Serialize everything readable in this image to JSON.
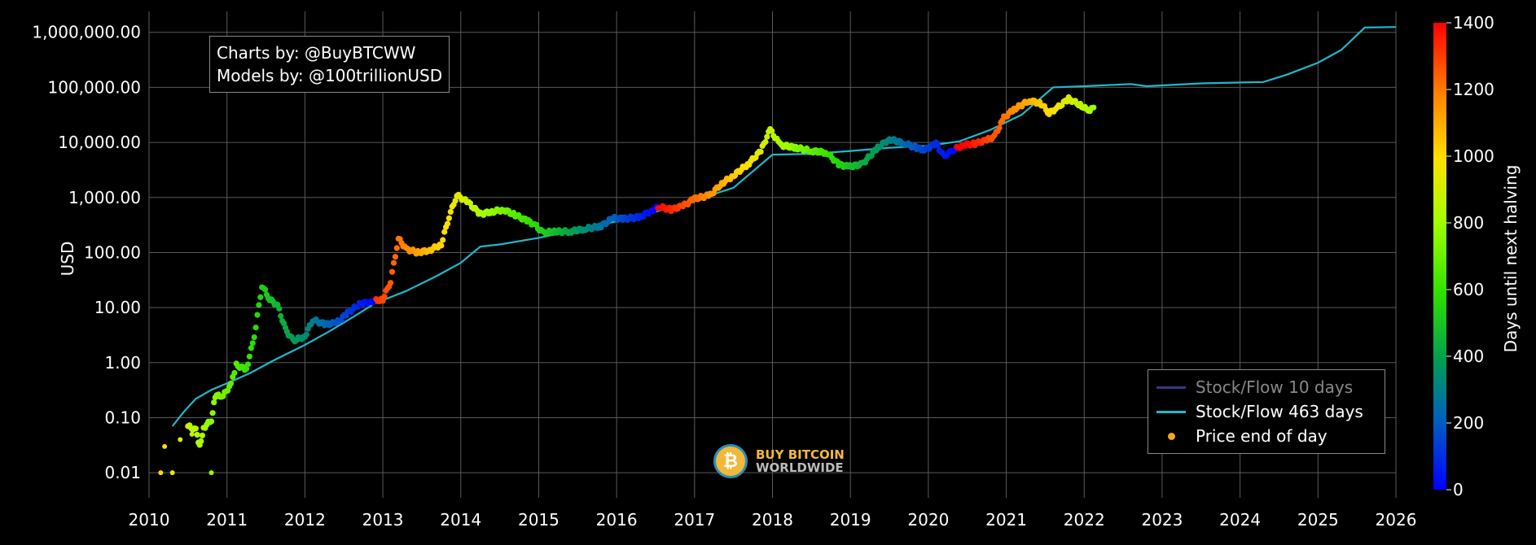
{
  "chart_data": {
    "type": "scatter",
    "title": "",
    "ylabel": "USD",
    "xlabel": "",
    "y_scale": "log",
    "y_ticks": [
      {
        "value": 0.01,
        "label": "0.01"
      },
      {
        "value": 0.1,
        "label": "0.10"
      },
      {
        "value": 1,
        "label": "1.00"
      },
      {
        "value": 10,
        "label": "10.00"
      },
      {
        "value": 100,
        "label": "100.00"
      },
      {
        "value": 1000,
        "label": "1,000.00"
      },
      {
        "value": 10000,
        "label": "10,000.00"
      },
      {
        "value": 100000,
        "label": "100,000.00"
      },
      {
        "value": 1000000,
        "label": "1,000,000.00"
      }
    ],
    "x_ticks": [
      "2010",
      "2011",
      "2012",
      "2013",
      "2014",
      "2015",
      "2016",
      "2017",
      "2018",
      "2019",
      "2020",
      "2021",
      "2022",
      "2023",
      "2024",
      "2025",
      "2026"
    ],
    "xlim": [
      2010,
      2026
    ],
    "ylim": [
      0.0035,
      2400000
    ],
    "grid": true,
    "colorbar": {
      "title": "Days until next halving",
      "range": [
        0,
        1400
      ],
      "ticks": [
        0,
        200,
        400,
        600,
        800,
        1000,
        1200,
        1400
      ]
    },
    "legend": {
      "placement": "bottom-right",
      "entries": [
        {
          "name": "Stock/Flow 10 days",
          "symbol": "line",
          "color": "#3a3580",
          "dimmed": true
        },
        {
          "name": "Stock/Flow 463 days",
          "symbol": "line",
          "color": "#1fb8cc"
        },
        {
          "name": "Price end of day",
          "symbol": "dot",
          "color": "#f5a623"
        }
      ]
    },
    "halvings": [
      2012.91,
      2016.52,
      2020.36,
      2024.3
    ],
    "series": [
      {
        "name": "Stock/Flow 463 days",
        "style": "line",
        "color": "#1fb8cc",
        "points": [
          [
            2010.3,
            0.07
          ],
          [
            2010.45,
            0.13
          ],
          [
            2010.6,
            0.22
          ],
          [
            2010.8,
            0.32
          ],
          [
            2011.0,
            0.42
          ],
          [
            2011.3,
            0.65
          ],
          [
            2011.6,
            1.1
          ],
          [
            2012.0,
            2.1
          ],
          [
            2012.3,
            3.6
          ],
          [
            2012.6,
            6.5
          ],
          [
            2012.9,
            12
          ],
          [
            2013.3,
            20
          ],
          [
            2013.7,
            38
          ],
          [
            2014.0,
            65
          ],
          [
            2014.25,
            128
          ],
          [
            2014.5,
            140
          ],
          [
            2015.0,
            185
          ],
          [
            2015.5,
            260
          ],
          [
            2016.0,
            370
          ],
          [
            2016.5,
            550
          ],
          [
            2016.9,
            800
          ],
          [
            2017.5,
            1500
          ],
          [
            2018.0,
            6000
          ],
          [
            2018.5,
            6200
          ],
          [
            2019.0,
            7000
          ],
          [
            2019.5,
            8000
          ],
          [
            2020.0,
            8700
          ],
          [
            2020.4,
            10500
          ],
          [
            2020.8,
            17000
          ],
          [
            2021.2,
            32000
          ],
          [
            2021.6,
            100000
          ],
          [
            2022.0,
            105000
          ],
          [
            2022.6,
            115000
          ],
          [
            2022.8,
            105000
          ],
          [
            2023.5,
            118000
          ],
          [
            2024.3,
            125000
          ],
          [
            2024.6,
            170000
          ],
          [
            2025.0,
            280000
          ],
          [
            2025.3,
            480000
          ],
          [
            2025.6,
            1220000
          ],
          [
            2026.0,
            1250000
          ]
        ]
      },
      {
        "name": "Price end of day",
        "style": "dots",
        "color_by": "Days until next halving",
        "points": [
          [
            2010.15,
            0.01
          ],
          [
            2010.3,
            0.01
          ],
          [
            2010.2,
            0.03
          ],
          [
            2010.4,
            0.04
          ],
          [
            2010.55,
            0.05
          ],
          [
            2010.8,
            0.01
          ],
          [
            2010.65,
            0.03
          ],
          [
            2010.5,
            0.07
          ],
          [
            2010.6,
            0.06
          ],
          [
            2010.7,
            0.065
          ],
          [
            2010.8,
            0.09
          ],
          [
            2010.85,
            0.25
          ],
          [
            2010.95,
            0.25
          ],
          [
            2011.05,
            0.4
          ],
          [
            2011.12,
            0.9
          ],
          [
            2011.25,
            0.75
          ],
          [
            2011.35,
            3
          ],
          [
            2011.45,
            25
          ],
          [
            2011.55,
            14
          ],
          [
            2011.65,
            11
          ],
          [
            2011.75,
            4
          ],
          [
            2011.85,
            2.5
          ],
          [
            2012.0,
            3
          ],
          [
            2012.1,
            6
          ],
          [
            2012.25,
            5
          ],
          [
            2012.4,
            5.2
          ],
          [
            2012.55,
            8
          ],
          [
            2012.7,
            11.5
          ],
          [
            2012.85,
            13
          ],
          [
            2013.0,
            14
          ],
          [
            2013.1,
            30
          ],
          [
            2013.2,
            180
          ],
          [
            2013.3,
            115
          ],
          [
            2013.45,
            100
          ],
          [
            2013.6,
            110
          ],
          [
            2013.75,
            140
          ],
          [
            2013.85,
            450
          ],
          [
            2013.95,
            1100
          ],
          [
            2014.1,
            800
          ],
          [
            2014.25,
            500
          ],
          [
            2014.4,
            550
          ],
          [
            2014.55,
            600
          ],
          [
            2014.7,
            480
          ],
          [
            2014.85,
            380
          ],
          [
            2014.95,
            320
          ],
          [
            2015.05,
            230
          ],
          [
            2015.2,
            240
          ],
          [
            2015.4,
            240
          ],
          [
            2015.6,
            270
          ],
          [
            2015.8,
            300
          ],
          [
            2015.95,
            420
          ],
          [
            2016.1,
            410
          ],
          [
            2016.3,
            440
          ],
          [
            2016.45,
            580
          ],
          [
            2016.55,
            680
          ],
          [
            2016.7,
            600
          ],
          [
            2016.85,
            700
          ],
          [
            2017.0,
            950
          ],
          [
            2017.2,
            1100
          ],
          [
            2017.35,
            1800
          ],
          [
            2017.5,
            2500
          ],
          [
            2017.7,
            4200
          ],
          [
            2017.85,
            7000
          ],
          [
            2017.97,
            17000
          ],
          [
            2018.1,
            9000
          ],
          [
            2018.3,
            8000
          ],
          [
            2018.5,
            7000
          ],
          [
            2018.7,
            6500
          ],
          [
            2018.85,
            4000
          ],
          [
            2018.97,
            3600
          ],
          [
            2019.15,
            4000
          ],
          [
            2019.35,
            8000
          ],
          [
            2019.5,
            11500
          ],
          [
            2019.7,
            9500
          ],
          [
            2019.85,
            8000
          ],
          [
            2019.95,
            7200
          ],
          [
            2020.1,
            9500
          ],
          [
            2020.2,
            5500
          ],
          [
            2020.3,
            7000
          ],
          [
            2020.45,
            9000
          ],
          [
            2020.6,
            9500
          ],
          [
            2020.75,
            11000
          ],
          [
            2020.85,
            13000
          ],
          [
            2020.97,
            28000
          ],
          [
            2021.1,
            40000
          ],
          [
            2021.3,
            58000
          ],
          [
            2021.45,
            50000
          ],
          [
            2021.55,
            34000
          ],
          [
            2021.65,
            42000
          ],
          [
            2021.8,
            62000
          ],
          [
            2021.95,
            48000
          ],
          [
            2022.05,
            38000
          ],
          [
            2022.12,
            43000
          ]
        ]
      }
    ]
  },
  "credits": {
    "line1": "Charts by: @BuyBTCWW",
    "line2": "Models by: @100trillionUSD"
  },
  "watermark": {
    "line1": "BUY BITCOIN",
    "line2": "WORLDWIDE",
    "logo_symbol": "₿"
  }
}
